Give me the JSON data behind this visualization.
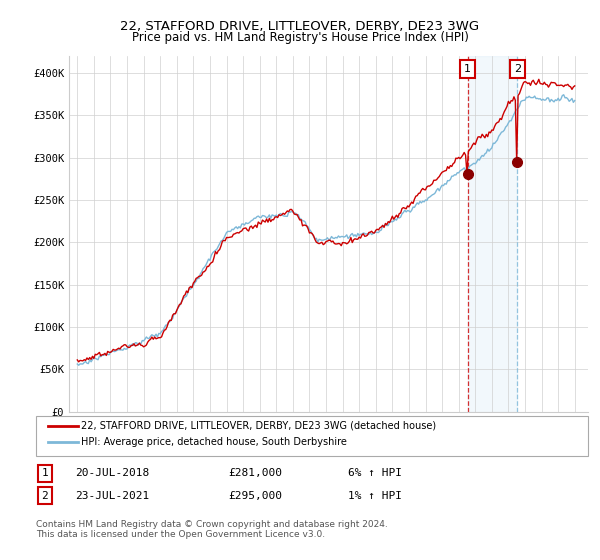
{
  "title": "22, STAFFORD DRIVE, LITTLEOVER, DERBY, DE23 3WG",
  "subtitle": "Price paid vs. HM Land Registry's House Price Index (HPI)",
  "legend_line1": "22, STAFFORD DRIVE, LITTLEOVER, DERBY, DE23 3WG (detached house)",
  "legend_line2": "HPI: Average price, detached house, South Derbyshire",
  "annotation1_label": "1",
  "annotation1_date": "20-JUL-2018",
  "annotation1_price": "£281,000",
  "annotation1_hpi": "6% ↑ HPI",
  "annotation2_label": "2",
  "annotation2_date": "23-JUL-2021",
  "annotation2_price": "£295,000",
  "annotation2_hpi": "1% ↑ HPI",
  "footer": "Contains HM Land Registry data © Crown copyright and database right 2024.\nThis data is licensed under the Open Government Licence v3.0.",
  "hpi_color": "#7db8d8",
  "price_color": "#cc0000",
  "annotation_color": "#cc0000",
  "vline2_color": "#7db8d8",
  "shaded_color": "#d6eaf8",
  "ylim": [
    0,
    420000
  ],
  "yticks": [
    0,
    50000,
    100000,
    150000,
    200000,
    250000,
    300000,
    350000,
    400000
  ],
  "ytick_labels": [
    "£0",
    "£50K",
    "£100K",
    "£150K",
    "£200K",
    "£250K",
    "£300K",
    "£350K",
    "£400K"
  ],
  "sale1_year": 2018.54,
  "sale2_year": 2021.54,
  "sale1_price": 281000,
  "sale2_price": 295000
}
